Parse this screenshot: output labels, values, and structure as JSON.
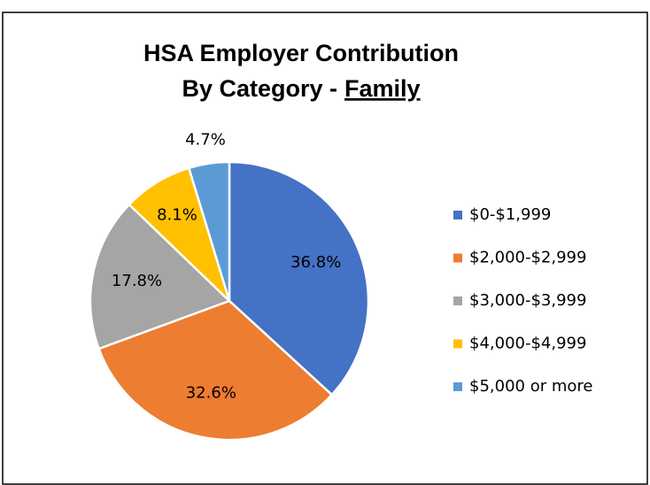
{
  "chart_data": {
    "type": "pie",
    "title": "HSA Employer Contribution",
    "subtitle": "By Category -",
    "subtitle_emphasis": "Family",
    "categories": [
      "$0-$1,999",
      "$2,000-$2,999",
      "$3,000-$3,999",
      "$4,000-$4,999",
      "$5,000 or more"
    ],
    "values": [
      36.8,
      32.6,
      17.8,
      8.1,
      4.7
    ],
    "value_labels": [
      "36.8%",
      "32.6%",
      "17.8%",
      "8.1%",
      "4.7%"
    ],
    "colors": [
      "#4472c4",
      "#ed7d31",
      "#a5a5a5",
      "#ffc000",
      "#5b9bd5"
    ],
    "legend": "right"
  }
}
